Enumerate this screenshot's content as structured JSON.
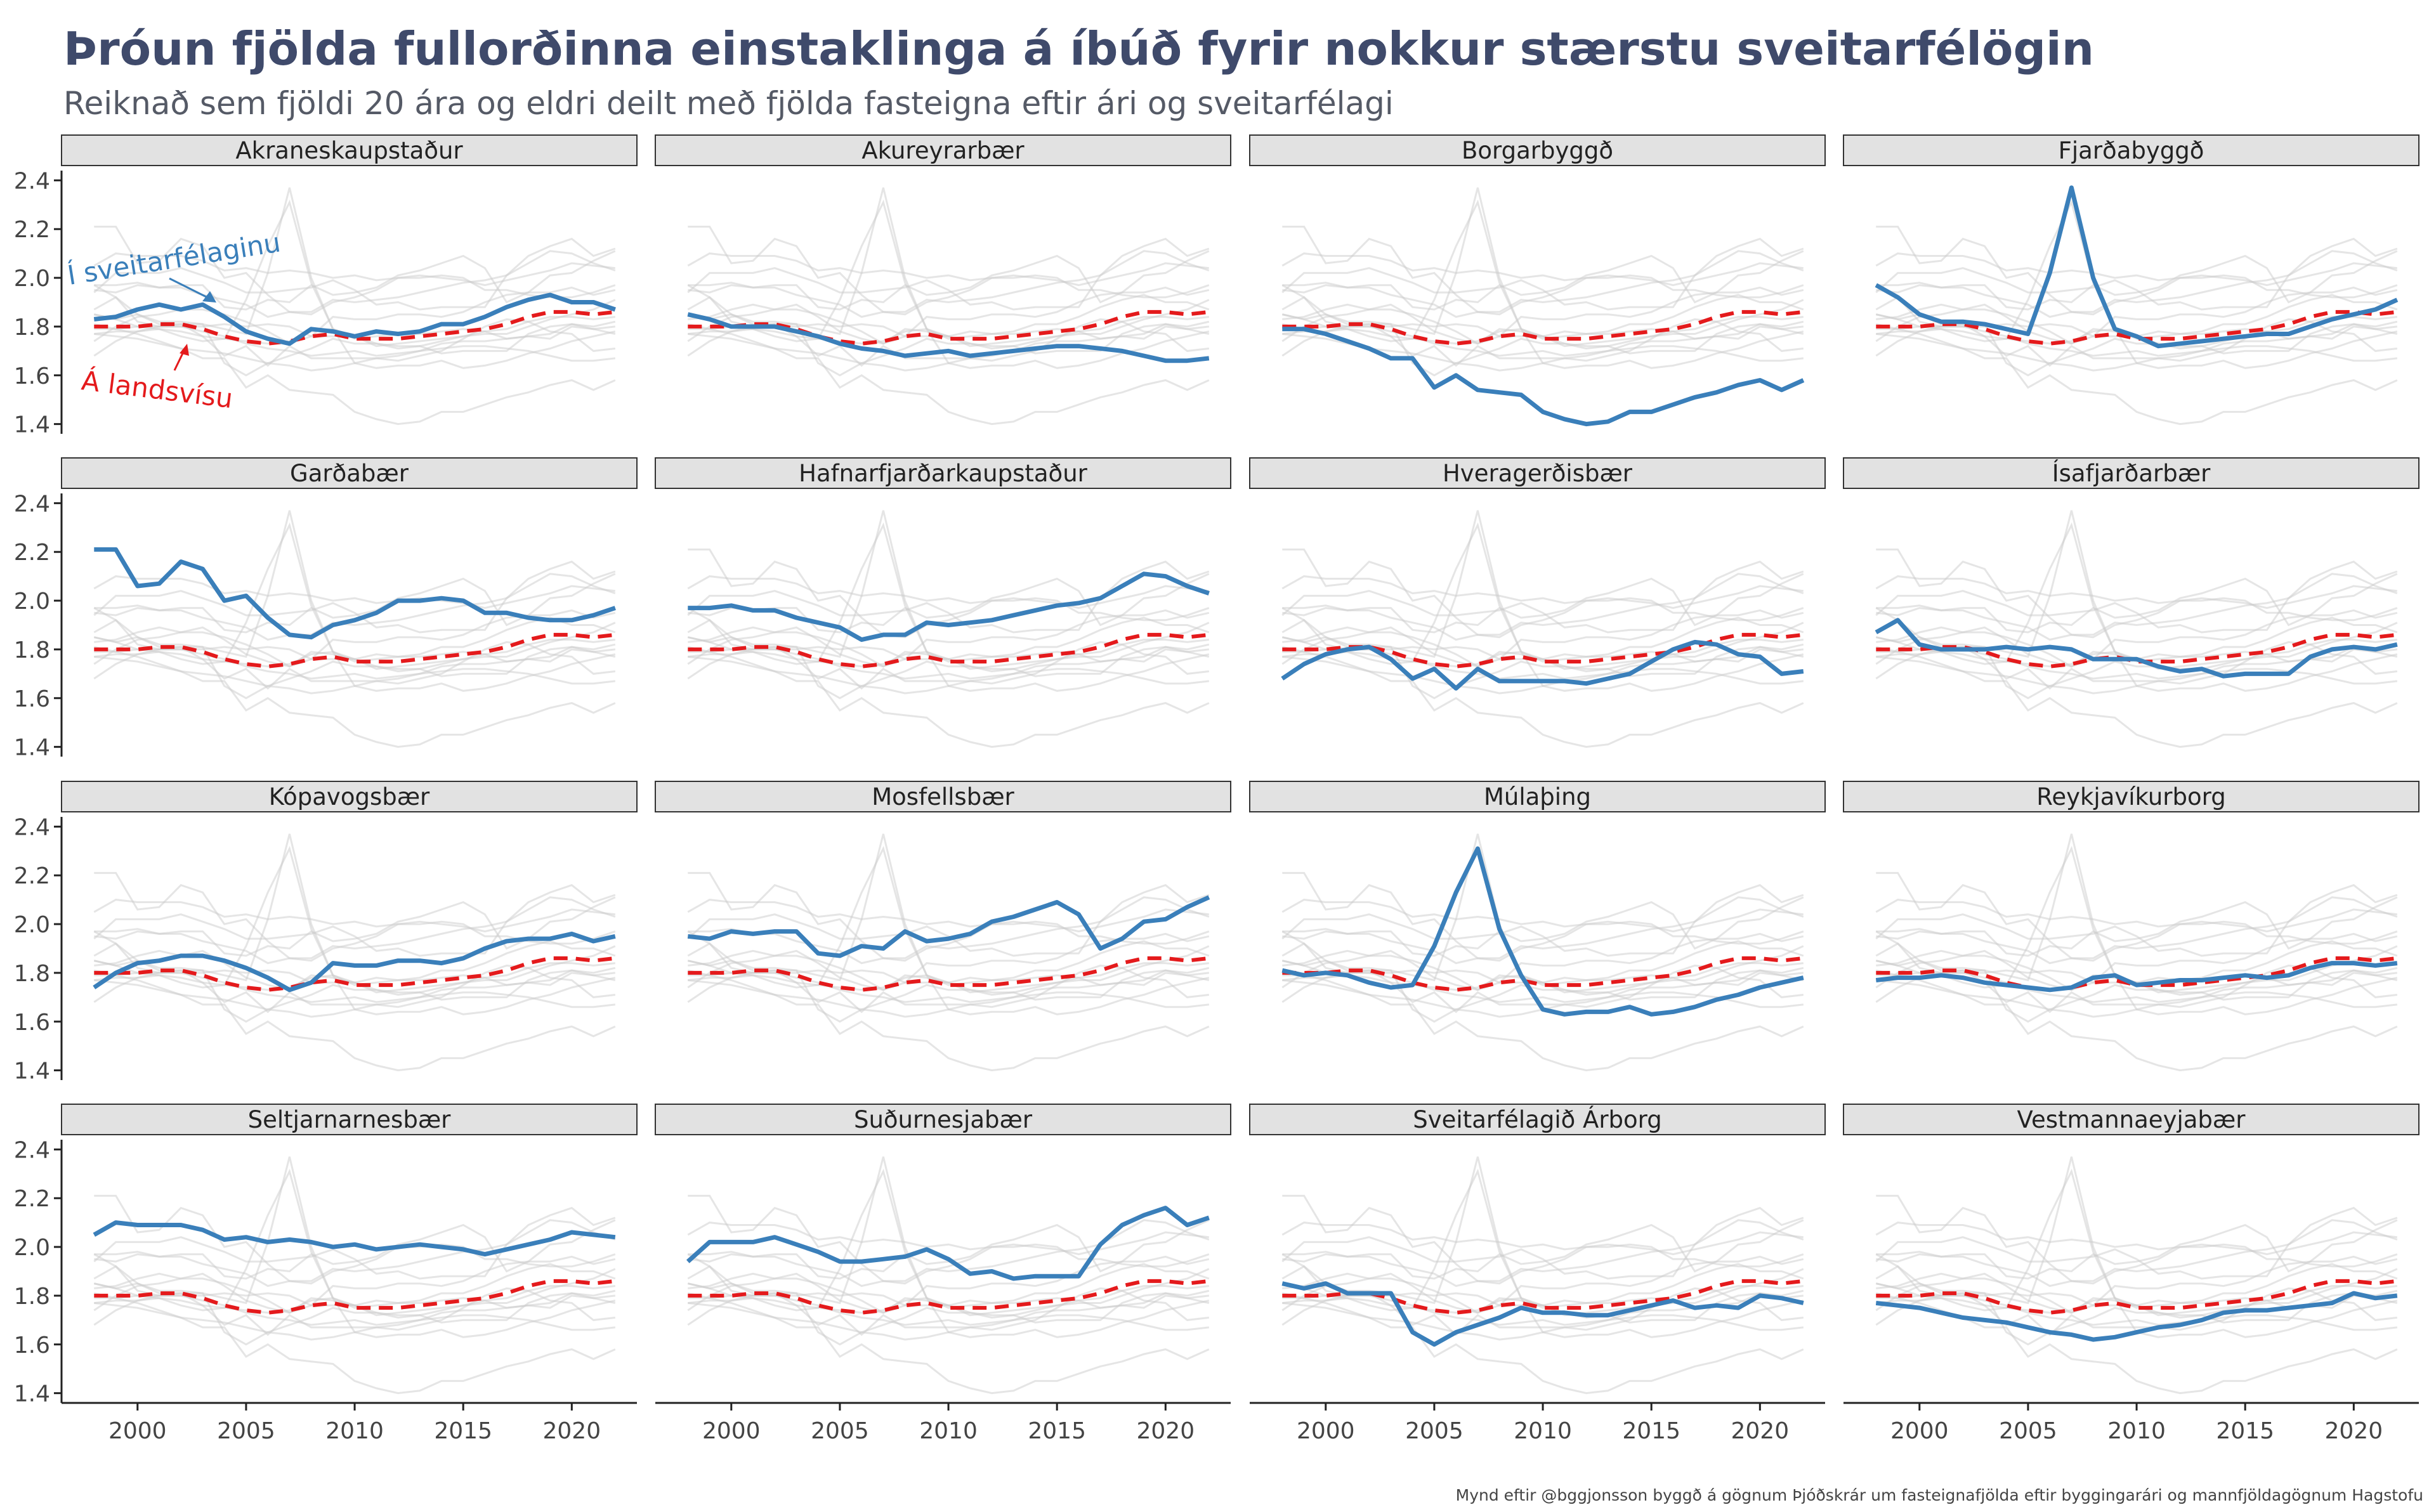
{
  "title": "Þróun fjölda fullorðinna einstaklinga á íbúð fyrir nokkur stærstu sveitarfélögin",
  "subtitle": "Reiknað sem fjöldi 20 ára og eldri deilt með fjölda fasteigna eftir ári og sveitarfélagi",
  "caption": "Mynd eftir @bggjonsson byggð á gögnum Þjóðskrár um fasteignafjölda eftir byggingarári og mannfjöldagögnum Hagstofu",
  "annotations": {
    "local": "Í sveitarfélaginu",
    "national": "Á landsvísu"
  },
  "colors": {
    "local": "#3a7fba",
    "national": "#e41a1c",
    "background": "#cccccc",
    "strip_fill": "#e2e2e2"
  },
  "chart_data": {
    "type": "line",
    "layout": "facet-grid 4x4",
    "x": [
      1998,
      1999,
      2000,
      2001,
      2002,
      2003,
      2004,
      2005,
      2006,
      2007,
      2008,
      2009,
      2010,
      2011,
      2012,
      2013,
      2014,
      2015,
      2016,
      2017,
      2018,
      2019,
      2020,
      2021,
      2022
    ],
    "xlim": [
      1996.5,
      2023
    ],
    "ylim": [
      1.36,
      2.44
    ],
    "x_ticks": [
      2000,
      2005,
      2010,
      2015,
      2020
    ],
    "y_ticks": [
      1.4,
      1.6,
      1.8,
      2.0,
      2.2,
      2.4
    ],
    "y_tick_labels": [
      "1.4",
      "1.6",
      "1.8",
      "2.0",
      "2.2",
      "2.4"
    ],
    "grid": false,
    "national": [
      1.8,
      1.8,
      1.8,
      1.81,
      1.81,
      1.79,
      1.76,
      1.74,
      1.73,
      1.74,
      1.76,
      1.77,
      1.75,
      1.75,
      1.75,
      1.76,
      1.77,
      1.78,
      1.79,
      1.81,
      1.84,
      1.86,
      1.86,
      1.85,
      1.86
    ],
    "panels": [
      {
        "name": "Akraneskaupstaður",
        "values": [
          1.83,
          1.84,
          1.87,
          1.89,
          1.87,
          1.89,
          1.84,
          1.78,
          1.75,
          1.73,
          1.79,
          1.78,
          1.76,
          1.78,
          1.77,
          1.78,
          1.81,
          1.81,
          1.84,
          1.88,
          1.91,
          1.93,
          1.9,
          1.9,
          1.87
        ]
      },
      {
        "name": "Akureyrarbær",
        "values": [
          1.85,
          1.83,
          1.8,
          1.8,
          1.8,
          1.78,
          1.76,
          1.73,
          1.71,
          1.7,
          1.68,
          1.69,
          1.7,
          1.68,
          1.69,
          1.7,
          1.71,
          1.72,
          1.72,
          1.71,
          1.7,
          1.68,
          1.66,
          1.66,
          1.67
        ]
      },
      {
        "name": "Borgarbyggð",
        "values": [
          1.79,
          1.79,
          1.77,
          1.74,
          1.71,
          1.67,
          1.67,
          1.55,
          1.6,
          1.54,
          1.53,
          1.52,
          1.45,
          1.42,
          1.4,
          1.41,
          1.45,
          1.45,
          1.48,
          1.51,
          1.53,
          1.56,
          1.58,
          1.54,
          1.58
        ]
      },
      {
        "name": "Fjarðabyggð",
        "values": [
          1.97,
          1.92,
          1.85,
          1.82,
          1.82,
          1.81,
          1.79,
          1.77,
          2.02,
          2.37,
          2.0,
          1.79,
          1.76,
          1.72,
          1.73,
          1.74,
          1.75,
          1.76,
          1.77,
          1.77,
          1.8,
          1.83,
          1.85,
          1.87,
          1.91
        ]
      },
      {
        "name": "Garðabær",
        "values": [
          2.21,
          2.21,
          2.06,
          2.07,
          2.16,
          2.13,
          2.0,
          2.02,
          1.93,
          1.86,
          1.85,
          1.9,
          1.92,
          1.95,
          2.0,
          2.0,
          2.01,
          2.0,
          1.95,
          1.95,
          1.93,
          1.92,
          1.92,
          1.94,
          1.97
        ]
      },
      {
        "name": "Hafnarfjarðarkaupstaður",
        "values": [
          1.97,
          1.97,
          1.98,
          1.96,
          1.96,
          1.93,
          1.91,
          1.89,
          1.84,
          1.86,
          1.86,
          1.91,
          1.9,
          1.91,
          1.92,
          1.94,
          1.96,
          1.98,
          1.99,
          2.01,
          2.06,
          2.11,
          2.1,
          2.06,
          2.03
        ]
      },
      {
        "name": "Hveragerðisbær",
        "values": [
          1.68,
          1.74,
          1.78,
          1.8,
          1.81,
          1.76,
          1.68,
          1.72,
          1.64,
          1.72,
          1.67,
          1.67,
          1.67,
          1.67,
          1.66,
          1.68,
          1.7,
          1.75,
          1.8,
          1.83,
          1.82,
          1.78,
          1.77,
          1.7,
          1.71
        ]
      },
      {
        "name": "Ísafjarðarbær",
        "values": [
          1.87,
          1.92,
          1.82,
          1.8,
          1.8,
          1.8,
          1.81,
          1.8,
          1.81,
          1.8,
          1.76,
          1.76,
          1.76,
          1.73,
          1.71,
          1.72,
          1.69,
          1.7,
          1.7,
          1.7,
          1.77,
          1.8,
          1.81,
          1.8,
          1.82
        ]
      },
      {
        "name": "Kópavogsbær",
        "values": [
          1.74,
          1.8,
          1.84,
          1.85,
          1.87,
          1.87,
          1.85,
          1.82,
          1.78,
          1.73,
          1.76,
          1.84,
          1.83,
          1.83,
          1.85,
          1.85,
          1.84,
          1.86,
          1.9,
          1.93,
          1.94,
          1.94,
          1.96,
          1.93,
          1.95
        ]
      },
      {
        "name": "Mosfellsbær",
        "values": [
          1.95,
          1.94,
          1.97,
          1.96,
          1.97,
          1.97,
          1.88,
          1.87,
          1.91,
          1.9,
          1.97,
          1.93,
          1.94,
          1.96,
          2.01,
          2.03,
          2.06,
          2.09,
          2.04,
          1.9,
          1.94,
          2.01,
          2.02,
          2.07,
          2.11
        ]
      },
      {
        "name": "Múlaþing",
        "values": [
          1.81,
          1.79,
          1.8,
          1.79,
          1.76,
          1.74,
          1.75,
          1.91,
          2.13,
          2.31,
          1.98,
          1.79,
          1.65,
          1.63,
          1.64,
          1.64,
          1.66,
          1.63,
          1.64,
          1.66,
          1.69,
          1.71,
          1.74,
          1.76,
          1.78
        ]
      },
      {
        "name": "Reykjavíkurborg",
        "values": [
          1.77,
          1.78,
          1.78,
          1.79,
          1.78,
          1.76,
          1.75,
          1.74,
          1.73,
          1.74,
          1.78,
          1.79,
          1.75,
          1.76,
          1.77,
          1.77,
          1.78,
          1.79,
          1.78,
          1.79,
          1.82,
          1.84,
          1.84,
          1.83,
          1.84
        ]
      },
      {
        "name": "Seltjarnarnesbær",
        "values": [
          2.05,
          2.1,
          2.09,
          2.09,
          2.09,
          2.07,
          2.03,
          2.04,
          2.02,
          2.03,
          2.02,
          2.0,
          2.01,
          1.99,
          2.0,
          2.01,
          2.0,
          1.99,
          1.97,
          1.99,
          2.01,
          2.03,
          2.06,
          2.05,
          2.04
        ]
      },
      {
        "name": "Suðurnesjabær",
        "values": [
          1.94,
          2.02,
          2.02,
          2.02,
          2.04,
          2.01,
          1.98,
          1.94,
          1.94,
          1.95,
          1.96,
          1.99,
          1.95,
          1.89,
          1.9,
          1.87,
          1.88,
          1.88,
          1.88,
          2.01,
          2.09,
          2.13,
          2.16,
          2.09,
          2.12
        ]
      },
      {
        "name": "Sveitarfélagið Árborg",
        "values": [
          1.85,
          1.83,
          1.85,
          1.81,
          1.81,
          1.81,
          1.65,
          1.6,
          1.65,
          1.68,
          1.71,
          1.75,
          1.73,
          1.73,
          1.72,
          1.72,
          1.74,
          1.76,
          1.78,
          1.75,
          1.76,
          1.75,
          1.8,
          1.79,
          1.77
        ]
      },
      {
        "name": "Vestmannaeyjabær",
        "values": [
          1.77,
          1.76,
          1.75,
          1.73,
          1.71,
          1.7,
          1.69,
          1.67,
          1.65,
          1.64,
          1.62,
          1.63,
          1.65,
          1.67,
          1.68,
          1.7,
          1.73,
          1.74,
          1.74,
          1.75,
          1.76,
          1.77,
          1.81,
          1.79,
          1.8
        ]
      }
    ]
  }
}
